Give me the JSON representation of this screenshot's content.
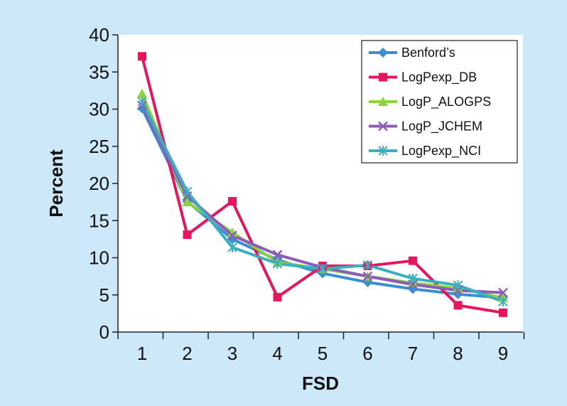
{
  "chart_data": {
    "type": "line",
    "title": "",
    "xlabel": "FSD",
    "ylabel": "Percent",
    "x": [
      1,
      2,
      3,
      4,
      5,
      6,
      7,
      8,
      9
    ],
    "ylim": [
      0,
      40
    ],
    "yticks": [
      0,
      5,
      10,
      15,
      20,
      25,
      30,
      35,
      40
    ],
    "grid": false,
    "legend_position": "top-right",
    "series": [
      {
        "name": "Benford’s",
        "color": "#3a8fd0",
        "marker": "diamond",
        "values": [
          30.1,
          17.6,
          12.5,
          9.7,
          7.9,
          6.7,
          5.8,
          5.1,
          4.6
        ]
      },
      {
        "name": "LogPexp_DB",
        "color": "#e8155c",
        "marker": "square",
        "values": [
          37.1,
          13.1,
          17.6,
          4.7,
          8.9,
          8.9,
          9.6,
          3.6,
          2.6
        ]
      },
      {
        "name": "LogP_ALOGPS",
        "color": "#8ed33c",
        "marker": "triangle",
        "values": [
          32.1,
          17.5,
          13.4,
          9.4,
          8.5,
          7.5,
          6.6,
          5.9,
          4.6
        ]
      },
      {
        "name": "LogP_JCHEM",
        "color": "#8b5cb8",
        "marker": "x",
        "values": [
          30.5,
          18.3,
          13.0,
          10.4,
          8.7,
          7.5,
          6.4,
          5.6,
          5.3
        ]
      },
      {
        "name": "LogPexp_NCI",
        "color": "#3aafbf",
        "marker": "asterisk",
        "values": [
          31.0,
          18.9,
          11.4,
          9.2,
          8.5,
          9.0,
          7.2,
          6.3,
          4.1
        ]
      }
    ]
  }
}
